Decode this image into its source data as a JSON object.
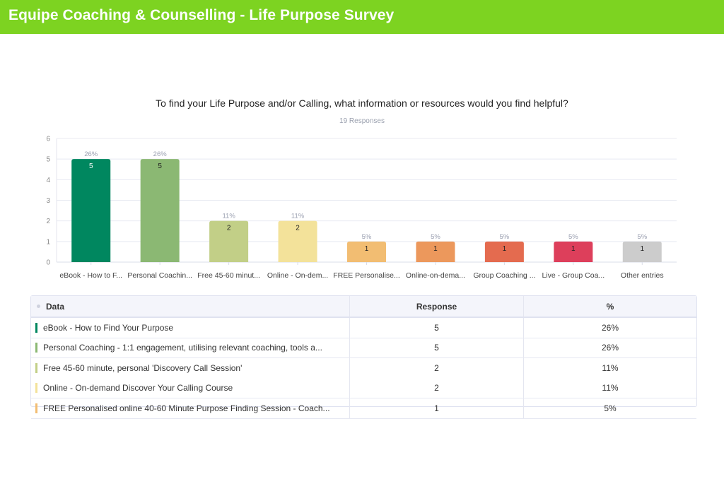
{
  "header": {
    "title": "Equipe Coaching & Counselling - Life Purpose Survey",
    "bg_color": "#7dd321"
  },
  "question": {
    "title": "To find your Life Purpose and/or Calling, what information or resources would you find helpful?",
    "responses_label": "19 Responses"
  },
  "chart_data": {
    "type": "bar",
    "title": "To find your Life Purpose and/or Calling, what information or resources would you find helpful?",
    "subtitle": "19 Responses",
    "xlabel": "",
    "ylabel": "",
    "ylim": [
      0,
      6
    ],
    "yticks": [
      "0",
      "1",
      "2",
      "3",
      "4",
      "5",
      "6"
    ],
    "grid": true,
    "categories": [
      "eBook - How to F...",
      "Personal Coachin...",
      "Free 45-60 minut...",
      "Online - On-dem...",
      "FREE Personalise...",
      "Online-on-dema...",
      "Group Coaching ...",
      "Live - Group Coa...",
      "Other entries"
    ],
    "values": [
      5,
      5,
      2,
      2,
      1,
      1,
      1,
      1,
      1
    ],
    "percent_labels": [
      "26%",
      "26%",
      "11%",
      "11%",
      "5%",
      "5%",
      "5%",
      "5%",
      "5%"
    ],
    "colors": [
      "#00875f",
      "#8bb873",
      "#c2cf87",
      "#f3e29a",
      "#f2bd72",
      "#ec985c",
      "#e46b4f",
      "#dd3f5b",
      "#cccccc"
    ],
    "value_label_colors": [
      "#ffffff",
      "#222222",
      "#222222",
      "#222222",
      "#222222",
      "#222222",
      "#222222",
      "#222222",
      "#222222"
    ]
  },
  "table": {
    "headers": {
      "data": "Data",
      "response": "Response",
      "percent": "%"
    },
    "rows": [
      {
        "label": "eBook - How to Find Your Purpose",
        "response": "5",
        "percent": "26%",
        "color": "#00875f"
      },
      {
        "label": "Personal Coaching - 1:1 engagement, utilising relevant coaching, tools a...",
        "response": "5",
        "percent": "26%",
        "color": "#8bb873"
      },
      {
        "label": "Free 45-60 minute, personal  'Discovery Call Session'",
        "response": "2",
        "percent": "11%",
        "color": "#c2cf87"
      },
      {
        "label": "Online - On-demand Discover Your Calling Course",
        "response": "2",
        "percent": "11%",
        "color": "#f3e29a"
      },
      {
        "label": "FREE Personalised online 40-60 Minute Purpose Finding Session - Coach...",
        "response": "1",
        "percent": "5%",
        "color": "#f2bd72"
      }
    ]
  }
}
